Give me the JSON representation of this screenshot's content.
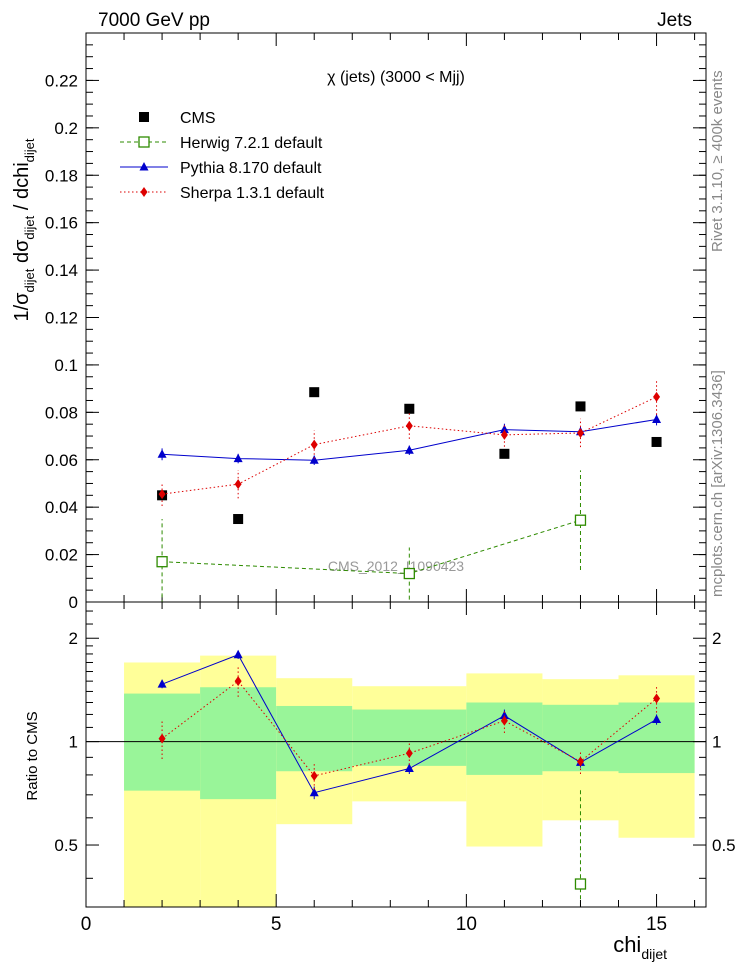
{
  "header": {
    "left": "7000 GeV pp",
    "right": "Jets"
  },
  "side_labels": {
    "rivet": "Rivet 3.1.10, ≥ 400k events",
    "mcplots": "mcplots.cern.ch [arXiv:1306.3436]"
  },
  "chart_data": [
    {
      "type": "scatter",
      "title": "χ (jets) (3000 < Mjj)",
      "ylabel": {
        "base1": "1/σ",
        "sub1": "dijet",
        "base2": " dσ",
        "sub2": "dijet",
        "base3": " / dchi",
        "sub3": "dijet"
      },
      "watermark": "CMS_2012_I1090423",
      "xlim": [
        0,
        16.3
      ],
      "ylim": [
        0,
        0.24
      ],
      "yticks": [
        0,
        0.02,
        0.04,
        0.06,
        0.08,
        0.1,
        0.12,
        0.14,
        0.16,
        0.18,
        0.2,
        0.22
      ],
      "ytick_labels": [
        "0",
        "0.02",
        "0.04",
        "0.06",
        "0.08",
        "0.1",
        "0.12",
        "0.14",
        "0.16",
        "0.18",
        "0.2",
        "0.22"
      ],
      "legend_position": "top-left",
      "series": [
        {
          "name": "CMS",
          "color": "#000000",
          "marker": "square-filled",
          "line": "none",
          "x": [
            2,
            4,
            6,
            8.5,
            11,
            13,
            15
          ],
          "y": [
            0.045,
            0.035,
            0.0885,
            0.0815,
            0.0625,
            0.0825,
            0.0675
          ],
          "err": [
            0,
            0,
            0,
            0,
            0,
            0,
            0
          ]
        },
        {
          "name": "Herwig 7.2.1 default",
          "color": "#2e8b00",
          "marker": "square-open",
          "line": "dashed",
          "x": [
            2,
            8.5,
            13
          ],
          "y": [
            0.017,
            0.012,
            0.0345
          ],
          "err": [
            0.018,
            0.011,
            0.021
          ]
        },
        {
          "name": "Pythia 8.170 default",
          "color": "#0000cc",
          "marker": "triangle",
          "line": "solid",
          "x": [
            2,
            4,
            6,
            8.5,
            11,
            13,
            15
          ],
          "y": [
            0.0623,
            0.0605,
            0.0598,
            0.064,
            0.0727,
            0.0718,
            0.077
          ],
          "err": [
            0.0025,
            0.002,
            0.002,
            0.002,
            0.0025,
            0.002,
            0.0025
          ]
        },
        {
          "name": "Sherpa 1.3.1 default",
          "color": "#dd0000",
          "marker": "diamond",
          "line": "dotted",
          "x": [
            2,
            4,
            6,
            8.5,
            11,
            13,
            15
          ],
          "y": [
            0.0455,
            0.0497,
            0.0664,
            0.0743,
            0.0705,
            0.0713,
            0.0865
          ],
          "err": [
            0.005,
            0.006,
            0.006,
            0.0055,
            0.005,
            0.006,
            0.0075
          ]
        }
      ]
    },
    {
      "type": "scatter",
      "ylabel": "Ratio to CMS",
      "xlabel": {
        "base": "chi",
        "sub": "dijet"
      },
      "xlim": [
        0,
        16.3
      ],
      "xticks": [
        0,
        5,
        10,
        15
      ],
      "xtick_labels": [
        "0",
        "5",
        "10",
        "15"
      ],
      "ylim": [
        0.33,
        2.55
      ],
      "yscale": "log",
      "yticks": [
        0.5,
        1,
        2
      ],
      "ytick_labels": [
        "0.5",
        "1",
        "2"
      ],
      "reference_line": 1,
      "uncertainty_bands": {
        "bins": [
          [
            1,
            3
          ],
          [
            3,
            5
          ],
          [
            5,
            7
          ],
          [
            7,
            10
          ],
          [
            10,
            12
          ],
          [
            12,
            14
          ],
          [
            14,
            16
          ]
        ],
        "inner_color": "#99f599",
        "outer_color": "#ffff99",
        "inner_lo": [
          0.72,
          0.68,
          0.82,
          0.85,
          0.8,
          0.82,
          0.81
        ],
        "inner_hi": [
          1.38,
          1.44,
          1.27,
          1.24,
          1.3,
          1.28,
          1.3
        ],
        "outer_lo": [
          0.33,
          0.33,
          0.575,
          0.67,
          0.495,
          0.59,
          0.525
        ],
        "outer_hi": [
          1.7,
          1.78,
          1.53,
          1.45,
          1.58,
          1.52,
          1.56
        ]
      },
      "series": [
        {
          "name": "Herwig 7.2.1 default",
          "color": "#2e8b00",
          "marker": "square-open",
          "line": "dashed",
          "x": [
            13
          ],
          "y": [
            0.385
          ],
          "err_lo": [
            0.11
          ],
          "err_hi": [
            0.34
          ]
        },
        {
          "name": "Pythia 8.170 default",
          "color": "#0000cc",
          "marker": "triangle",
          "line": "solid",
          "x": [
            2,
            4,
            6,
            8.5,
            11,
            13,
            15
          ],
          "y": [
            1.47,
            1.79,
            0.71,
            0.835,
            1.19,
            0.87,
            1.16
          ],
          "err_lo": [
            0.04,
            0.05,
            0.03,
            0.03,
            0.05,
            0.03,
            0.04
          ],
          "err_hi": [
            0.04,
            0.05,
            0.03,
            0.03,
            0.05,
            0.03,
            0.04
          ]
        },
        {
          "name": "Sherpa 1.3.1 default",
          "color": "#dd0000",
          "marker": "diamond",
          "line": "dotted",
          "x": [
            2,
            4,
            6,
            8.5,
            11,
            13,
            15
          ],
          "y": [
            1.02,
            1.5,
            0.795,
            0.925,
            1.15,
            0.875,
            1.335
          ],
          "err_lo": [
            0.13,
            0.15,
            0.07,
            0.07,
            0.09,
            0.07,
            0.12
          ],
          "err_hi": [
            0.13,
            0.15,
            0.07,
            0.07,
            0.09,
            0.07,
            0.12
          ]
        }
      ]
    }
  ]
}
